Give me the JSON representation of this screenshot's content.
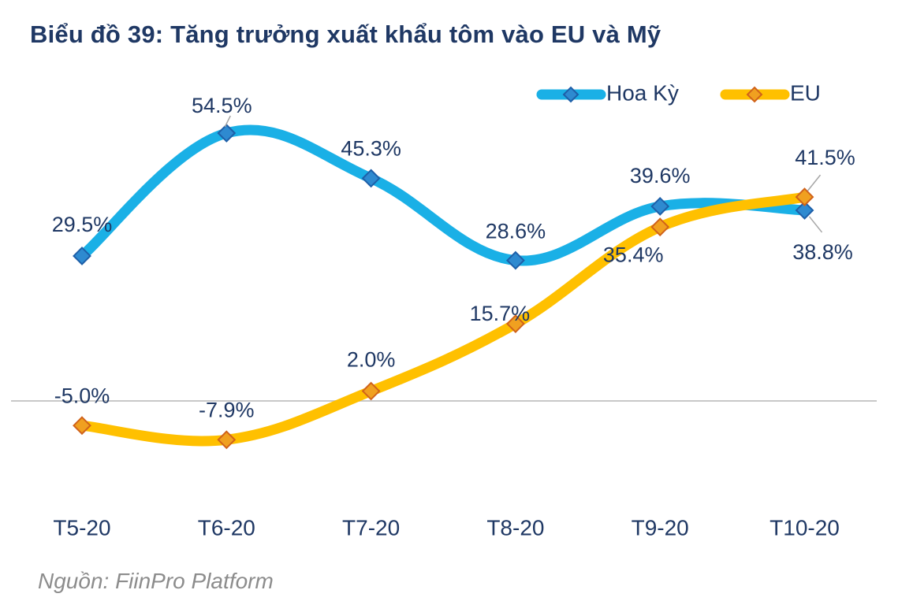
{
  "title": "Biểu đồ 39: Tăng trưởng xuất khẩu tôm vào EU và Mỹ",
  "source": "Nguồn: FiinPro Platform",
  "colors": {
    "us_line": "#1ab0e6",
    "us_marker": "#2e8ad0",
    "eu_line": "#ffc000",
    "eu_marker": "#f0a020",
    "eu_marker_edge": "#d0621a",
    "text": "#1f3864",
    "zero_line": "#c8c8c8"
  },
  "chart_data": {
    "type": "line",
    "categories": [
      "T5-20",
      "T6-20",
      "T7-20",
      "T8-20",
      "T9-20",
      "T10-20"
    ],
    "series": [
      {
        "name": "Hoa Kỳ",
        "values": [
          29.5,
          54.5,
          45.3,
          28.6,
          39.6,
          38.8
        ],
        "labels": [
          "29.5%",
          "54.5%",
          "45.3%",
          "28.6%",
          "39.6%",
          "38.8%"
        ]
      },
      {
        "name": "EU",
        "values": [
          -5.0,
          -7.9,
          2.0,
          15.7,
          35.4,
          41.5
        ],
        "labels": [
          "-5.0%",
          "-7.9%",
          "2.0%",
          "15.7%",
          "35.4%",
          "41.5%"
        ]
      }
    ],
    "ylim": [
      -20,
      65
    ],
    "legend": "top-right",
    "grid": false
  }
}
